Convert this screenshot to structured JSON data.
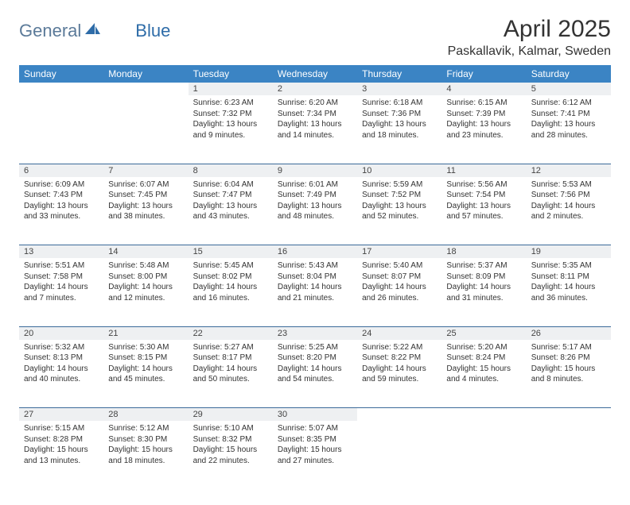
{
  "logo": {
    "text1": "General",
    "text2": "Blue",
    "color1": "#5b7a99",
    "color2": "#2e6ca8",
    "sail_color": "#2e6ca8"
  },
  "title": "April 2025",
  "location": "Paskallavik, Kalmar, Sweden",
  "header_bg": "#3b84c4",
  "header_fg": "#ffffff",
  "daynum_bg": "#eef0f2",
  "border_color": "#3b6a9a",
  "weekdays": [
    "Sunday",
    "Monday",
    "Tuesday",
    "Wednesday",
    "Thursday",
    "Friday",
    "Saturday"
  ],
  "weeks": [
    [
      null,
      null,
      {
        "n": "1",
        "sr": "6:23 AM",
        "ss": "7:32 PM",
        "dl": "Daylight: 13 hours and 9 minutes."
      },
      {
        "n": "2",
        "sr": "6:20 AM",
        "ss": "7:34 PM",
        "dl": "Daylight: 13 hours and 14 minutes."
      },
      {
        "n": "3",
        "sr": "6:18 AM",
        "ss": "7:36 PM",
        "dl": "Daylight: 13 hours and 18 minutes."
      },
      {
        "n": "4",
        "sr": "6:15 AM",
        "ss": "7:39 PM",
        "dl": "Daylight: 13 hours and 23 minutes."
      },
      {
        "n": "5",
        "sr": "6:12 AM",
        "ss": "7:41 PM",
        "dl": "Daylight: 13 hours and 28 minutes."
      }
    ],
    [
      {
        "n": "6",
        "sr": "6:09 AM",
        "ss": "7:43 PM",
        "dl": "Daylight: 13 hours and 33 minutes."
      },
      {
        "n": "7",
        "sr": "6:07 AM",
        "ss": "7:45 PM",
        "dl": "Daylight: 13 hours and 38 minutes."
      },
      {
        "n": "8",
        "sr": "6:04 AM",
        "ss": "7:47 PM",
        "dl": "Daylight: 13 hours and 43 minutes."
      },
      {
        "n": "9",
        "sr": "6:01 AM",
        "ss": "7:49 PM",
        "dl": "Daylight: 13 hours and 48 minutes."
      },
      {
        "n": "10",
        "sr": "5:59 AM",
        "ss": "7:52 PM",
        "dl": "Daylight: 13 hours and 52 minutes."
      },
      {
        "n": "11",
        "sr": "5:56 AM",
        "ss": "7:54 PM",
        "dl": "Daylight: 13 hours and 57 minutes."
      },
      {
        "n": "12",
        "sr": "5:53 AM",
        "ss": "7:56 PM",
        "dl": "Daylight: 14 hours and 2 minutes."
      }
    ],
    [
      {
        "n": "13",
        "sr": "5:51 AM",
        "ss": "7:58 PM",
        "dl": "Daylight: 14 hours and 7 minutes."
      },
      {
        "n": "14",
        "sr": "5:48 AM",
        "ss": "8:00 PM",
        "dl": "Daylight: 14 hours and 12 minutes."
      },
      {
        "n": "15",
        "sr": "5:45 AM",
        "ss": "8:02 PM",
        "dl": "Daylight: 14 hours and 16 minutes."
      },
      {
        "n": "16",
        "sr": "5:43 AM",
        "ss": "8:04 PM",
        "dl": "Daylight: 14 hours and 21 minutes."
      },
      {
        "n": "17",
        "sr": "5:40 AM",
        "ss": "8:07 PM",
        "dl": "Daylight: 14 hours and 26 minutes."
      },
      {
        "n": "18",
        "sr": "5:37 AM",
        "ss": "8:09 PM",
        "dl": "Daylight: 14 hours and 31 minutes."
      },
      {
        "n": "19",
        "sr": "5:35 AM",
        "ss": "8:11 PM",
        "dl": "Daylight: 14 hours and 36 minutes."
      }
    ],
    [
      {
        "n": "20",
        "sr": "5:32 AM",
        "ss": "8:13 PM",
        "dl": "Daylight: 14 hours and 40 minutes."
      },
      {
        "n": "21",
        "sr": "5:30 AM",
        "ss": "8:15 PM",
        "dl": "Daylight: 14 hours and 45 minutes."
      },
      {
        "n": "22",
        "sr": "5:27 AM",
        "ss": "8:17 PM",
        "dl": "Daylight: 14 hours and 50 minutes."
      },
      {
        "n": "23",
        "sr": "5:25 AM",
        "ss": "8:20 PM",
        "dl": "Daylight: 14 hours and 54 minutes."
      },
      {
        "n": "24",
        "sr": "5:22 AM",
        "ss": "8:22 PM",
        "dl": "Daylight: 14 hours and 59 minutes."
      },
      {
        "n": "25",
        "sr": "5:20 AM",
        "ss": "8:24 PM",
        "dl": "Daylight: 15 hours and 4 minutes."
      },
      {
        "n": "26",
        "sr": "5:17 AM",
        "ss": "8:26 PM",
        "dl": "Daylight: 15 hours and 8 minutes."
      }
    ],
    [
      {
        "n": "27",
        "sr": "5:15 AM",
        "ss": "8:28 PM",
        "dl": "Daylight: 15 hours and 13 minutes."
      },
      {
        "n": "28",
        "sr": "5:12 AM",
        "ss": "8:30 PM",
        "dl": "Daylight: 15 hours and 18 minutes."
      },
      {
        "n": "29",
        "sr": "5:10 AM",
        "ss": "8:32 PM",
        "dl": "Daylight: 15 hours and 22 minutes."
      },
      {
        "n": "30",
        "sr": "5:07 AM",
        "ss": "8:35 PM",
        "dl": "Daylight: 15 hours and 27 minutes."
      },
      null,
      null,
      null
    ]
  ],
  "labels": {
    "sunrise": "Sunrise:",
    "sunset": "Sunset:"
  }
}
